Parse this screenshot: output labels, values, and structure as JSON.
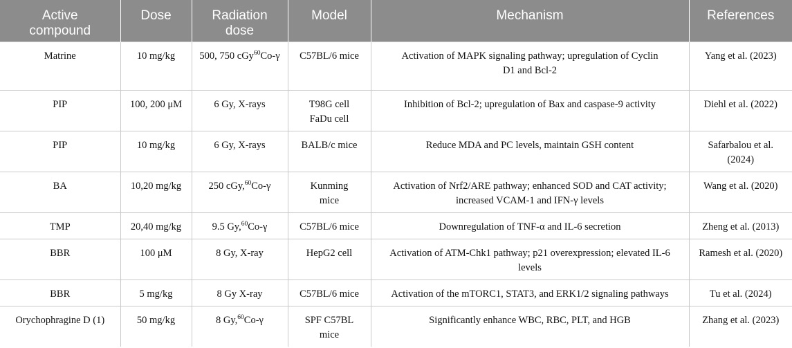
{
  "headers": [
    {
      "line1": "Active",
      "line2": "compound"
    },
    {
      "line1": "Dose",
      "line2": ""
    },
    {
      "line1": "Radiation",
      "line2": "dose"
    },
    {
      "line1": "Model",
      "line2": ""
    },
    {
      "line1": "Mechanism",
      "line2": ""
    },
    {
      "line1": "References",
      "line2": ""
    }
  ],
  "rows": [
    {
      "compound": "Matrine",
      "dose": "10 mg/kg",
      "radiation": {
        "pre": "500, 750 cGy",
        "sup": "60",
        "post": "Co-γ"
      },
      "model": {
        "line1": "C57BL/6 mice",
        "line2": ""
      },
      "mechanism": {
        "line1": "Activation of MAPK signaling pathway; upregulation of Cyclin",
        "line2": "D1 and Bcl-2"
      },
      "reference": {
        "line1": "Yang et al. (2023)",
        "line2": ""
      }
    },
    {
      "compound": "PIP",
      "dose": "100, 200 μM",
      "radiation": {
        "pre": "6 Gy, X-rays",
        "sup": "",
        "post": ""
      },
      "model": {
        "line1": "T98G cell",
        "line2": "FaDu cell"
      },
      "mechanism": {
        "line1": "Inhibition of Bcl-2; upregulation of Bax and caspase-9 activity",
        "line2": ""
      },
      "reference": {
        "line1": "Diehl et al. (2022)",
        "line2": ""
      }
    },
    {
      "compound": "PIP",
      "dose": "10 mg/kg",
      "radiation": {
        "pre": "6 Gy, X-rays",
        "sup": "",
        "post": ""
      },
      "model": {
        "line1": "BALB/c mice",
        "line2": ""
      },
      "mechanism": {
        "line1": "Reduce MDA and PC levels, maintain GSH content",
        "line2": ""
      },
      "reference": {
        "line1": "Safarbalou et al.",
        "line2": "(2024)"
      }
    },
    {
      "compound": "BA",
      "dose": "10,20 mg/kg",
      "radiation": {
        "pre": "250 cGy,",
        "sup": "60",
        "post": "Co-γ"
      },
      "model": {
        "line1": "Kunming",
        "line2": "mice"
      },
      "mechanism": {
        "line1": "Activation of Nrf2/ARE pathway; enhanced SOD and CAT activity;",
        "line2": "increased VCAM-1 and IFN-γ levels"
      },
      "reference": {
        "line1": "Wang et al. (2020)",
        "line2": ""
      }
    },
    {
      "compound": "TMP",
      "dose": "20,40 mg/kg",
      "radiation": {
        "pre": "9.5 Gy,",
        "sup": "60",
        "post": "Co-γ"
      },
      "model": {
        "line1": "C57BL/6 mice",
        "line2": ""
      },
      "mechanism": {
        "line1": "Downregulation of TNF-α and IL-6 secretion",
        "line2": ""
      },
      "reference": {
        "line1": "Zheng et al. (2013)",
        "line2": ""
      }
    },
    {
      "compound": "BBR",
      "dose": "100 μM",
      "radiation": {
        "pre": "8 Gy, X-ray",
        "sup": "",
        "post": ""
      },
      "model": {
        "line1": "HepG2 cell",
        "line2": ""
      },
      "mechanism": {
        "line1": "Activation of ATM-Chk1 pathway; p21 overexpression; elevated IL-6",
        "line2": "levels"
      },
      "reference": {
        "line1": "Ramesh et al. (2020)",
        "line2": ""
      }
    },
    {
      "compound": "BBR",
      "dose": "5 mg/kg",
      "radiation": {
        "pre": "8 Gy X-ray",
        "sup": "",
        "post": ""
      },
      "model": {
        "line1": "C57BL/6 mice",
        "line2": ""
      },
      "mechanism": {
        "line1": "Activation of the mTORC1, STAT3, and ERK1/2 signaling pathways",
        "line2": ""
      },
      "reference": {
        "line1": "Tu et al. (2024)",
        "line2": ""
      }
    },
    {
      "compound": "Orychophragine D (1)",
      "dose": "50 mg/kg",
      "radiation": {
        "pre": "8 Gy,",
        "sup": "60",
        "post": "Co-γ"
      },
      "model": {
        "line1": "SPF C57BL",
        "line2": "mice"
      },
      "mechanism": {
        "line1": "Significantly enhance WBC, RBC, PLT, and HGB",
        "line2": ""
      },
      "reference": {
        "line1": "Zhang et al. (2023)",
        "line2": ""
      }
    }
  ]
}
